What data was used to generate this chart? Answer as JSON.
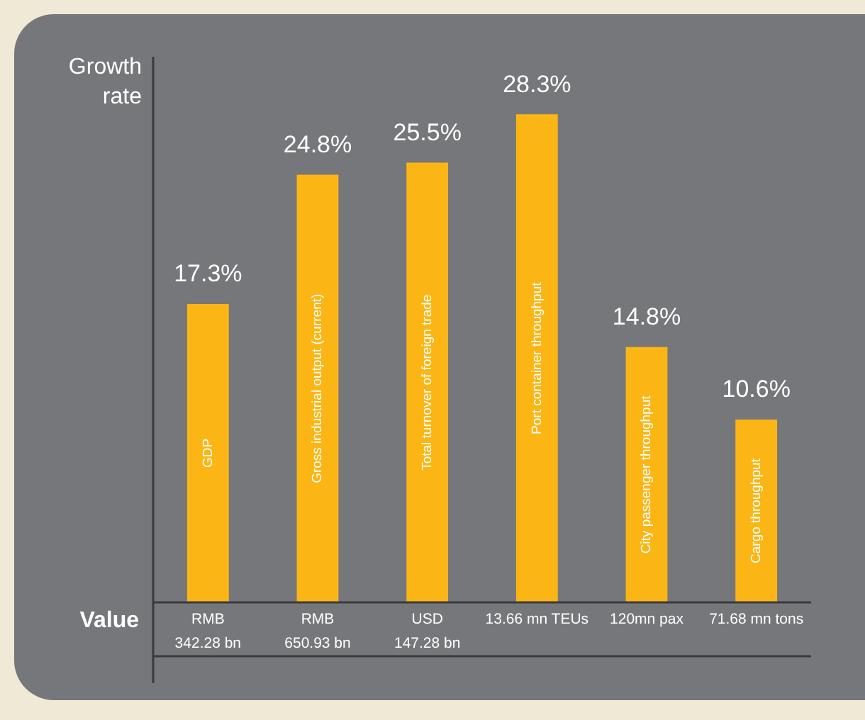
{
  "chart_data": {
    "type": "bar",
    "ylabel": "Growth rate",
    "categories": [
      "GDP",
      "Gross industrial output (current)",
      "Total turnover of foreign trade",
      "Port container throughput",
      "City passenger throughput",
      "Cargo throughput"
    ],
    "values": [
      17.3,
      24.8,
      25.5,
      28.3,
      14.8,
      10.6
    ],
    "color": "#fbb615",
    "value_labels": [
      "17.3%",
      "24.8%",
      "25.5%",
      "28.3%",
      "14.8%",
      "10.6%"
    ],
    "annotations": [
      "Value",
      "RMB\n342.28 bn",
      "RMB\n650.93 bn",
      "USD\n147.28 bn",
      "13.66 mn TEUs",
      "120mn pax",
      "71.68 mn tons"
    ]
  }
}
